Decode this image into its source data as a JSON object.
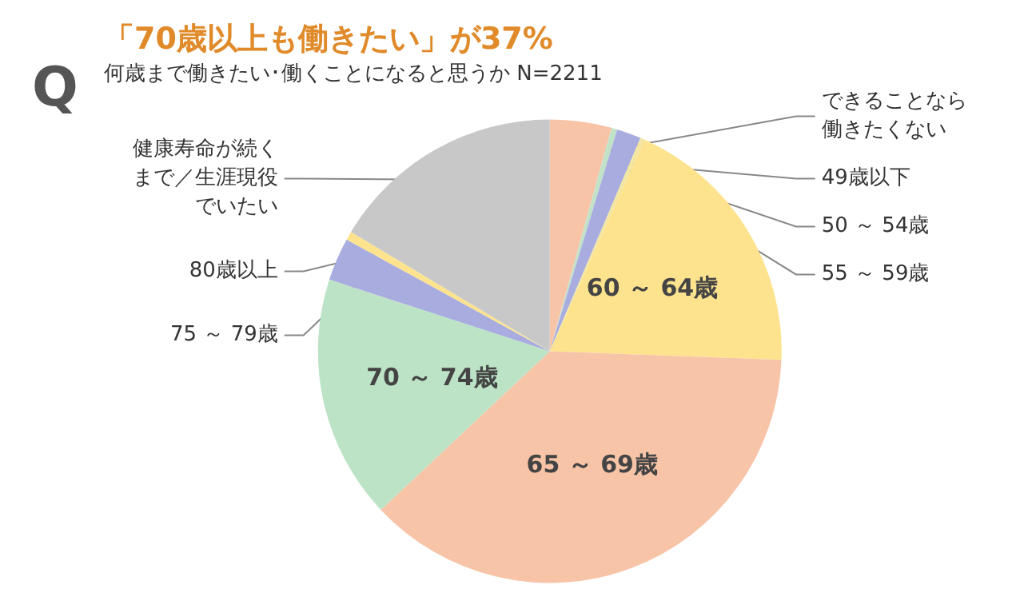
{
  "chart_data": {
    "type": "pie",
    "title": "「70歳以上も働きたい」が37%",
    "subtitle": "何歳まで働きたい･働くことになると思うか N=2211",
    "annotations": [
      "Q"
    ],
    "categories": [
      "できることなら働きたくない",
      "49歳以下",
      "50 ～ 54歳",
      "55 ～ 59歳",
      "60 ～ 64歳",
      "65 ～ 69歳",
      "70 ～ 74歳",
      "75 ～ 79歳",
      "80歳以上",
      "健康寿命が続くまで／生涯現役でいたい"
    ],
    "values": [
      4.3,
      0.4,
      1.7,
      0.3,
      18.9,
      37.4,
      17,
      3,
      0.6,
      16.4
    ],
    "colors": [
      "#f8c4a8",
      "#c2e2c8",
      "#a9acdf",
      "#f3e6a0",
      "#fde38e",
      "#f8c4a8",
      "#bde3c6",
      "#a9acdf",
      "#fde38e",
      "#c8c8c8"
    ],
    "legend": false
  }
}
